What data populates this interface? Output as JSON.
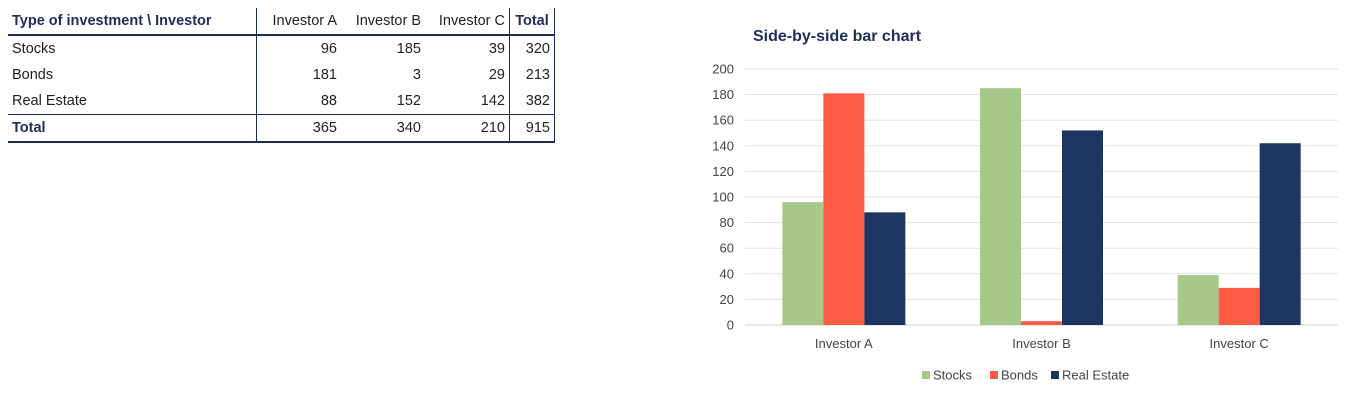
{
  "table": {
    "header": {
      "title": "Type of investment \\ Investor",
      "cols": [
        "Investor A",
        "Investor B",
        "Investor C"
      ],
      "total": "Total"
    },
    "rows": [
      {
        "label": "Stocks",
        "values": [
          "96",
          "185",
          "39"
        ],
        "total": "320"
      },
      {
        "label": "Bonds",
        "values": [
          "181",
          "3",
          "29"
        ],
        "total": "213"
      },
      {
        "label": "Real Estate",
        "values": [
          "88",
          "152",
          "142"
        ],
        "total": "382"
      }
    ],
    "total_row": {
      "label": "Total",
      "values": [
        "365",
        "340",
        "210"
      ],
      "total": "915"
    }
  },
  "colors": {
    "stocks": "#a6c98a",
    "bonds": "#ff5b45",
    "real_estate": "#1e3461",
    "grid": "#e3e3e3",
    "axis": "#d0d0d0"
  },
  "chart_data": {
    "type": "bar",
    "title": "Side-by-side bar chart",
    "categories": [
      "Investor A",
      "Investor B",
      "Investor C"
    ],
    "series": [
      {
        "name": "Stocks",
        "values": [
          96,
          185,
          39
        ]
      },
      {
        "name": "Bonds",
        "values": [
          181,
          3,
          29
        ]
      },
      {
        "name": "Real Estate",
        "values": [
          88,
          152,
          142
        ]
      }
    ],
    "ylim": [
      0,
      200
    ],
    "yticks": [
      0,
      20,
      40,
      60,
      80,
      100,
      120,
      140,
      160,
      180,
      200
    ],
    "grid": true,
    "legend": "bottom",
    "xlabel": "",
    "ylabel": ""
  }
}
